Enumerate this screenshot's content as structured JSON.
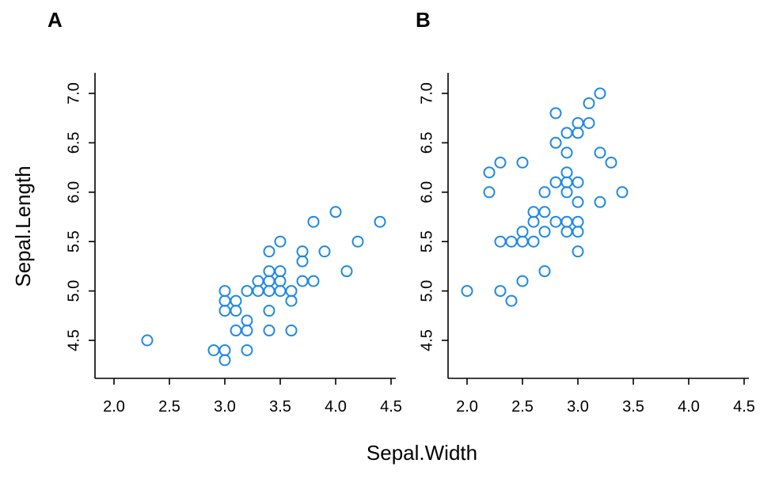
{
  "figure": {
    "shared_xlabel": "Sepal.Width",
    "shared_ylabel": "Sepal.Length",
    "point_color": "#1E88E5"
  },
  "chart_data": [
    {
      "type": "scatter",
      "panel": "A",
      "xlim": [
        1.85,
        4.55
      ],
      "ylim": [
        4.1,
        7.2
      ],
      "xticks": [
        "2.0",
        "2.5",
        "3.0",
        "3.5",
        "4.0",
        "4.5"
      ],
      "yticks": [
        "4.5",
        "5.0",
        "5.5",
        "6.0",
        "6.5",
        "7.0"
      ],
      "points": [
        [
          2.3,
          4.5
        ],
        [
          2.9,
          4.4
        ],
        [
          3.0,
          4.4
        ],
        [
          3.0,
          4.3
        ],
        [
          3.0,
          4.8
        ],
        [
          3.0,
          4.9
        ],
        [
          3.0,
          5.0
        ],
        [
          3.1,
          4.6
        ],
        [
          3.1,
          4.8
        ],
        [
          3.1,
          4.9
        ],
        [
          3.2,
          4.4
        ],
        [
          3.2,
          4.6
        ],
        [
          3.2,
          4.7
        ],
        [
          3.2,
          5.0
        ],
        [
          3.3,
          5.0
        ],
        [
          3.3,
          5.1
        ],
        [
          3.4,
          4.6
        ],
        [
          3.4,
          4.8
        ],
        [
          3.4,
          5.0
        ],
        [
          3.4,
          5.1
        ],
        [
          3.4,
          5.2
        ],
        [
          3.4,
          5.4
        ],
        [
          3.5,
          5.0
        ],
        [
          3.5,
          5.1
        ],
        [
          3.5,
          5.2
        ],
        [
          3.5,
          5.5
        ],
        [
          3.6,
          4.6
        ],
        [
          3.6,
          4.9
        ],
        [
          3.6,
          5.0
        ],
        [
          3.7,
          5.1
        ],
        [
          3.7,
          5.3
        ],
        [
          3.7,
          5.4
        ],
        [
          3.8,
          5.1
        ],
        [
          3.8,
          5.7
        ],
        [
          3.9,
          5.4
        ],
        [
          4.0,
          5.8
        ],
        [
          4.1,
          5.2
        ],
        [
          4.2,
          5.5
        ],
        [
          4.4,
          5.7
        ]
      ]
    },
    {
      "type": "scatter",
      "panel": "B",
      "xlim": [
        1.85,
        4.55
      ],
      "ylim": [
        4.1,
        7.2
      ],
      "xticks": [
        "2.0",
        "2.5",
        "3.0",
        "3.5",
        "4.0",
        "4.5"
      ],
      "yticks": [
        "4.5",
        "5.0",
        "5.5",
        "6.0",
        "6.5",
        "7.0"
      ],
      "points": [
        [
          2.0,
          5.0
        ],
        [
          2.2,
          6.0
        ],
        [
          2.2,
          6.2
        ],
        [
          2.3,
          6.3
        ],
        [
          2.3,
          5.5
        ],
        [
          2.3,
          5.0
        ],
        [
          2.4,
          5.5
        ],
        [
          2.4,
          4.9
        ],
        [
          2.5,
          6.3
        ],
        [
          2.5,
          5.6
        ],
        [
          2.5,
          5.5
        ],
        [
          2.5,
          5.1
        ],
        [
          2.6,
          5.8
        ],
        [
          2.6,
          5.7
        ],
        [
          2.6,
          5.5
        ],
        [
          2.7,
          6.0
        ],
        [
          2.7,
          5.8
        ],
        [
          2.7,
          5.6
        ],
        [
          2.7,
          5.2
        ],
        [
          2.8,
          6.8
        ],
        [
          2.8,
          6.5
        ],
        [
          2.8,
          6.1
        ],
        [
          2.8,
          5.7
        ],
        [
          2.9,
          6.6
        ],
        [
          2.9,
          6.4
        ],
        [
          2.9,
          6.2
        ],
        [
          2.9,
          6.1
        ],
        [
          2.9,
          6.0
        ],
        [
          2.9,
          5.7
        ],
        [
          2.9,
          5.6
        ],
        [
          3.0,
          6.7
        ],
        [
          3.0,
          6.6
        ],
        [
          3.0,
          6.1
        ],
        [
          3.0,
          5.9
        ],
        [
          3.0,
          5.7
        ],
        [
          3.0,
          5.6
        ],
        [
          3.0,
          5.4
        ],
        [
          3.1,
          6.9
        ],
        [
          3.1,
          6.7
        ],
        [
          3.2,
          7.0
        ],
        [
          3.2,
          6.4
        ],
        [
          3.2,
          5.9
        ],
        [
          3.3,
          6.3
        ],
        [
          3.4,
          6.0
        ]
      ]
    }
  ]
}
